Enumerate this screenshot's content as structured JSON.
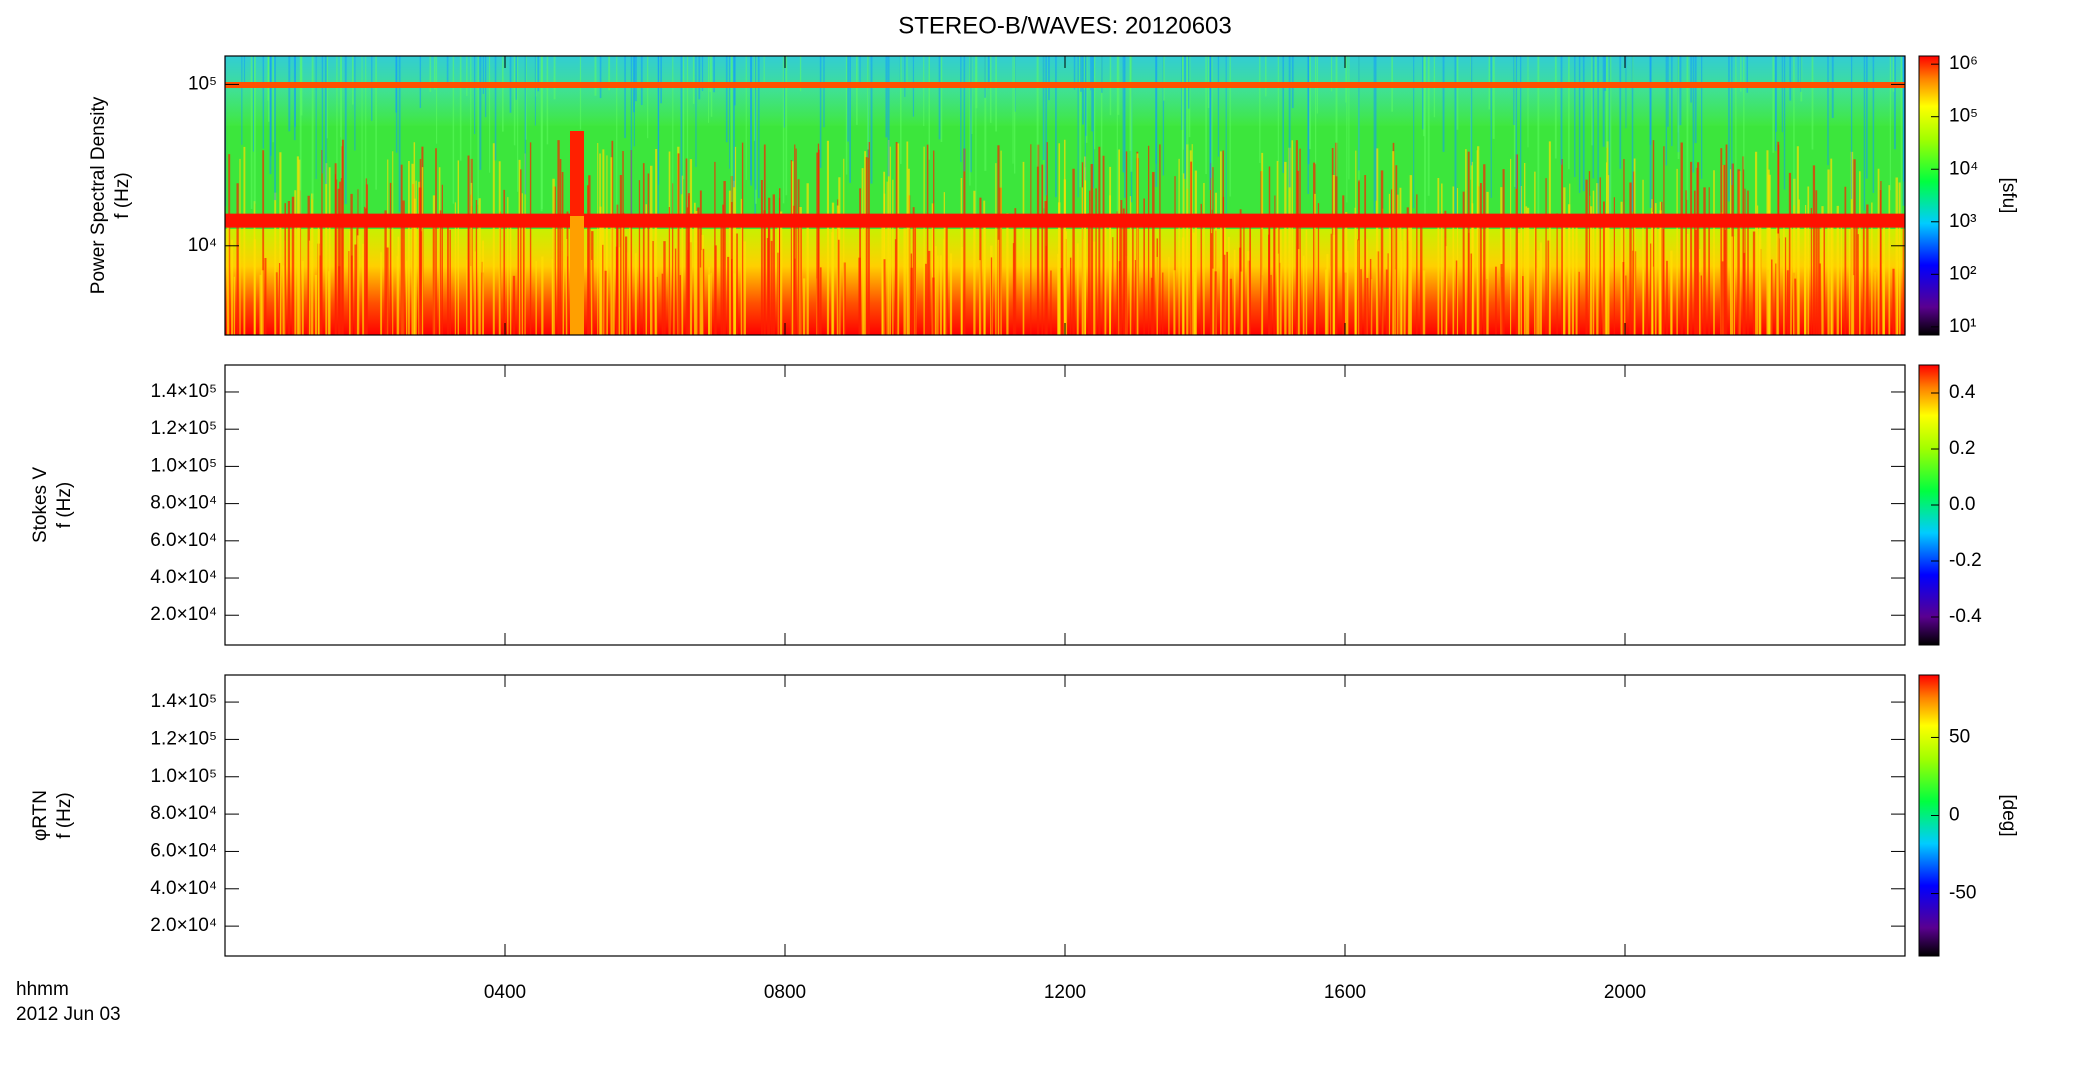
{
  "chart_data": [
    {
      "type": "spectrogram",
      "title": "STEREO-B/WAVES: 20120603",
      "ylabel": [
        "Power Spectral Density",
        "f (Hz)"
      ],
      "log": true,
      "ylim": [
        2800,
        150000
      ],
      "yticks": [
        {
          "value": 10000,
          "label": "10⁴"
        },
        {
          "value": 100000,
          "label": "10⁵"
        }
      ],
      "colorbar": {
        "label": "[sfu]",
        "log": true,
        "lim": [
          7,
          1430000
        ],
        "ticks": [
          {
            "value": 10,
            "label": "10¹"
          },
          {
            "value": 100,
            "label": "10²"
          },
          {
            "value": 1000,
            "label": "10³"
          },
          {
            "value": 10000,
            "label": "10⁴"
          },
          {
            "value": 100000,
            "label": "10⁵"
          },
          {
            "value": 1000000,
            "label": "10⁶"
          }
        ]
      }
    },
    {
      "type": "spectrogram",
      "ylabel": [
        "Stokes V",
        "f (Hz)"
      ],
      "log": false,
      "ylim": [
        4000,
        154500
      ],
      "yticks": [
        {
          "value": 20000,
          "label": "2.0×10⁴"
        },
        {
          "value": 40000,
          "label": "4.0×10⁴"
        },
        {
          "value": 60000,
          "label": "6.0×10⁴"
        },
        {
          "value": 80000,
          "label": "8.0×10⁴"
        },
        {
          "value": 100000,
          "label": "1.0×10⁵"
        },
        {
          "value": 120000,
          "label": "1.2×10⁵"
        },
        {
          "value": 140000,
          "label": "1.4×10⁵"
        }
      ],
      "colorbar": {
        "log": false,
        "lim": [
          -0.5,
          0.5
        ],
        "ticks": [
          -0.4,
          -0.2,
          {
            "value": 0,
            "label": "0.0"
          },
          0.2,
          0.4
        ]
      }
    },
    {
      "type": "spectrogram",
      "ylabel": [
        "φRTN",
        "f (Hz)"
      ],
      "log": false,
      "ylim": [
        4000,
        154500
      ],
      "yticks": [
        {
          "value": 20000,
          "label": "2.0×10⁴"
        },
        {
          "value": 40000,
          "label": "4.0×10⁴"
        },
        {
          "value": 60000,
          "label": "6.0×10⁴"
        },
        {
          "value": 80000,
          "label": "8.0×10⁴"
        },
        {
          "value": 100000,
          "label": "1.0×10⁵"
        },
        {
          "value": 120000,
          "label": "1.2×10⁵"
        },
        {
          "value": 140000,
          "label": "1.4×10⁵"
        }
      ],
      "colorbar": {
        "label": "[deg]",
        "log": false,
        "lim": [
          -90,
          90
        ],
        "ticks": [
          -50,
          0,
          50
        ]
      },
      "xlabel": "hhmm",
      "date": "2012 Jun 03",
      "xlim": [
        0,
        24
      ],
      "xticks": [
        {
          "value": 4,
          "label": "0400"
        },
        {
          "value": 8,
          "label": "0800"
        },
        {
          "value": 12,
          "label": "1200"
        },
        {
          "value": 16,
          "label": "1600"
        },
        {
          "value": 20,
          "label": "2000"
        }
      ]
    }
  ]
}
